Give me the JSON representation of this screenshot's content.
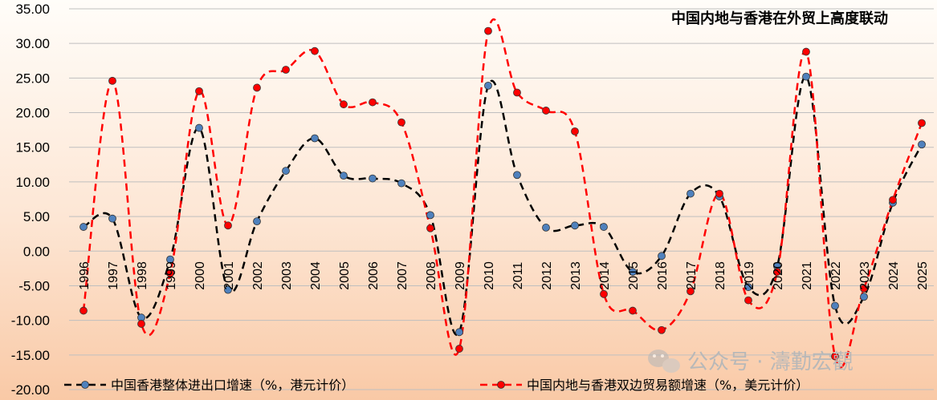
{
  "chart_data": {
    "type": "line",
    "title": "中国内地与香港在外贸上高度联动",
    "xlabel": "",
    "ylabel": "",
    "ylim": [
      -20,
      35
    ],
    "yticks": [
      "35.00",
      "30.00",
      "25.00",
      "20.00",
      "15.00",
      "10.00",
      "5.00",
      "0.00",
      "-5.00",
      "-10.00",
      "-15.00",
      "-20.00"
    ],
    "x": [
      "1996",
      "1997",
      "1998",
      "1999",
      "2000",
      "2001",
      "2002",
      "2003",
      "2004",
      "2005",
      "2006",
      "2007",
      "2008",
      "2009",
      "2010",
      "2011",
      "2012",
      "2013",
      "2014",
      "2015",
      "2016",
      "2017",
      "2018",
      "2019",
      "2020",
      "2021",
      "2022",
      "2023",
      "2024",
      "2025"
    ],
    "grid": "horizontal",
    "legend_position": "bottom",
    "series": [
      {
        "name": "中国香港整体进出口增速（%，港元计价）",
        "color": "#000000",
        "marker_color": "#4f81bd",
        "values": [
          3.5,
          4.7,
          -9.6,
          -1.2,
          17.8,
          -5.6,
          4.3,
          11.6,
          16.3,
          10.9,
          10.5,
          9.8,
          5.2,
          -11.7,
          23.9,
          11.0,
          3.4,
          3.7,
          3.5,
          -3.0,
          -0.7,
          8.3,
          7.9,
          -5.2,
          -2.2,
          25.2,
          -7.9,
          -6.6,
          7.0,
          15.4
        ]
      },
      {
        "name": "中国内地与香港双边贸易额增速（%，美元计价）",
        "color": "#ff0000",
        "marker_color": "#ff0000",
        "values": [
          -8.6,
          24.6,
          -10.5,
          -3.2,
          23.1,
          3.7,
          23.6,
          26.2,
          28.9,
          21.2,
          21.5,
          18.6,
          3.3,
          -14.1,
          31.8,
          22.9,
          20.3,
          17.3,
          -6.2,
          -8.6,
          -11.4,
          -5.8,
          8.3,
          -7.1,
          -3.0,
          28.8,
          -15.2,
          -5.4,
          7.4,
          18.5
        ]
      }
    ]
  },
  "watermark": {
    "text": "公众号 · 濤勤宏觀",
    "icon": "wechat-icon"
  }
}
